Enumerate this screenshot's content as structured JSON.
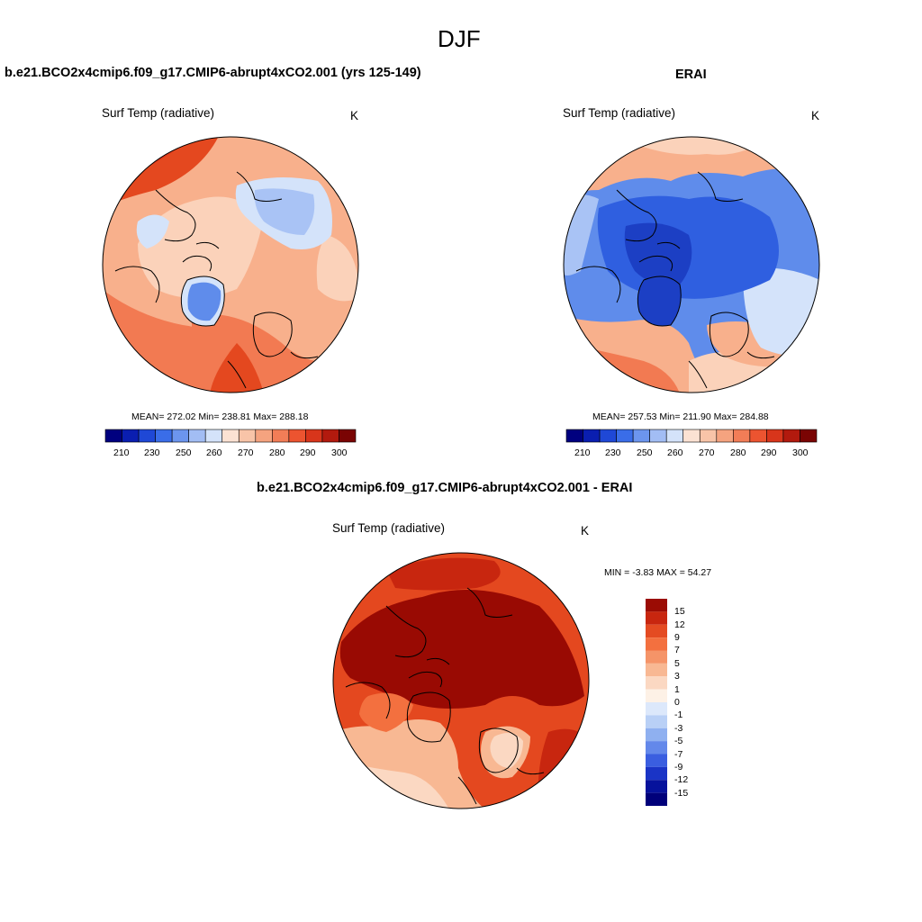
{
  "figure": {
    "title": "DJF"
  },
  "panels": {
    "model": {
      "header": "b.e21.BCO2x4cmip6.f09_g17.CMIP6-abrupt4xCO2.001 (yrs 125-149)",
      "variable": "Surf Temp (radiative)",
      "unit": "K",
      "stats": "MEAN= 272.02  Min= 238.81  Max= 288.18",
      "mean": 272.02,
      "min": 238.81,
      "max": 288.18
    },
    "obs": {
      "header": "ERAI",
      "variable": "Surf Temp (radiative)",
      "unit": "K",
      "stats": "MEAN= 257.53  Min= 211.90  Max= 284.88",
      "mean": 257.53,
      "min": 211.9,
      "max": 284.88
    },
    "diff": {
      "header": "b.e21.BCO2x4cmip6.f09_g17.CMIP6-abrupt4xCO2.001 - ERAI",
      "variable": "Surf Temp (radiative)",
      "unit": "K",
      "stats": "MIN =  -3.83 MAX =  54.27",
      "min": -3.83,
      "max": 54.27
    }
  },
  "colorbars": {
    "absolute": {
      "tick_labels": [
        "210",
        "230",
        "250",
        "260",
        "270",
        "280",
        "290",
        "300"
      ],
      "colors": [
        "#00007f",
        "#0a1eb0",
        "#1f48d6",
        "#3a6de8",
        "#6c95ee",
        "#a2bdf4",
        "#d4e3fa",
        "#fbe2d3",
        "#f8c4a8",
        "#f5a37f",
        "#f27d57",
        "#ec5430",
        "#d8351b",
        "#b21a0e",
        "#7a0403"
      ]
    },
    "difference": {
      "tick_labels": [
        "15",
        "12",
        "9",
        "7",
        "5",
        "3",
        "1",
        "0",
        "-1",
        "-3",
        "-5",
        "-7",
        "-9",
        "-12",
        "-15"
      ],
      "colors": [
        "#9b0c04",
        "#c8260f",
        "#e44b22",
        "#f3703f",
        "#f59468",
        "#f8b893",
        "#fbd8c2",
        "#fdf1e6",
        "#dce8fb",
        "#b9d0f6",
        "#8fb0f0",
        "#6388ea",
        "#3a5ee0",
        "#1a34c6",
        "#06129c",
        "#00007a"
      ]
    }
  },
  "map_colors": {
    "warm1": "#fbd2ba",
    "warm2": "#f8b08c",
    "warm3": "#f27a52",
    "warm4": "#e4481f",
    "cool1": "#d4e3fa",
    "cool2": "#a9c3f5",
    "cool3": "#5f8ceb",
    "cool4": "#2f5fe0",
    "cool5": "#1c3fc4",
    "dred": "#990a03",
    "red": "#d8351b"
  }
}
